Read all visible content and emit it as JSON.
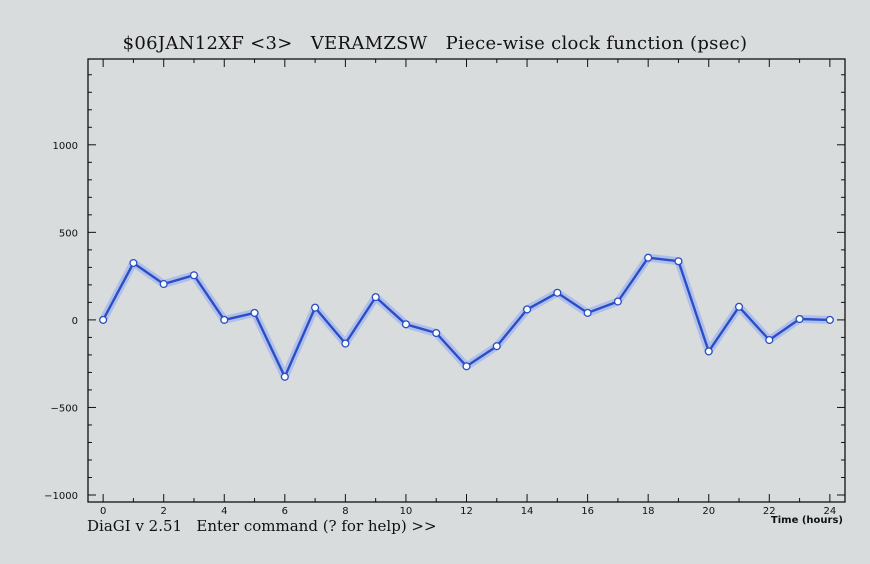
{
  "window": {
    "title": "$06JAN12XF <3>   VERAMZSW   Piece-wise clock function (psec)",
    "command_prompt": "DiaGI v 2.51   Enter command (? for help) >>"
  },
  "colors": {
    "background": "#d9dcdc",
    "axes": "#111111",
    "series_line": "#2a4fc4",
    "series_halo": "#a8b8ee",
    "marker_fill": "#ffffff"
  },
  "chart_data": {
    "type": "line",
    "title": "$06JAN12XF <3>   VERAMZSW   Piece-wise clock function (psec)",
    "xlabel": "Time (hours)",
    "ylabel": "",
    "xlim": [
      -0.5,
      24.5
    ],
    "ylim": [
      -1040,
      1490
    ],
    "x_ticks": [
      0,
      2,
      4,
      6,
      8,
      10,
      12,
      14,
      16,
      18,
      20,
      22,
      24
    ],
    "y_ticks": [
      -1000,
      -500,
      0,
      500,
      1000
    ],
    "x_tick_labels": [
      "0",
      "2",
      "4",
      "6",
      "8",
      "10",
      "12",
      "14",
      "16",
      "18",
      "20",
      "22",
      "24"
    ],
    "y_tick_labels": [
      "−1000",
      "−500",
      "0",
      "500",
      "1000"
    ],
    "grid": false,
    "series": [
      {
        "x": [
          0,
          1,
          2,
          3,
          4,
          5,
          6,
          7,
          8,
          9,
          10,
          11,
          12,
          13,
          14,
          15,
          16,
          17,
          18,
          19,
          20,
          21,
          22,
          23,
          24
        ],
        "y": [
          0,
          325,
          205,
          255,
          0,
          40,
          -325,
          70,
          -135,
          130,
          -25,
          -75,
          -265,
          -150,
          60,
          155,
          40,
          105,
          355,
          335,
          -180,
          75,
          -115,
          5,
          0
        ]
      }
    ]
  }
}
